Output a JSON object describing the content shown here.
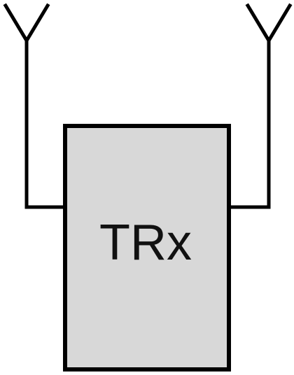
{
  "diagram": {
    "transceiver_label": "TRx",
    "colors": {
      "box_fill": "#d8d8d8",
      "line": "#000000",
      "text": "#111111",
      "background": "#ffffff"
    },
    "icons": [
      "antenna-left-icon",
      "antenna-right-icon"
    ]
  }
}
